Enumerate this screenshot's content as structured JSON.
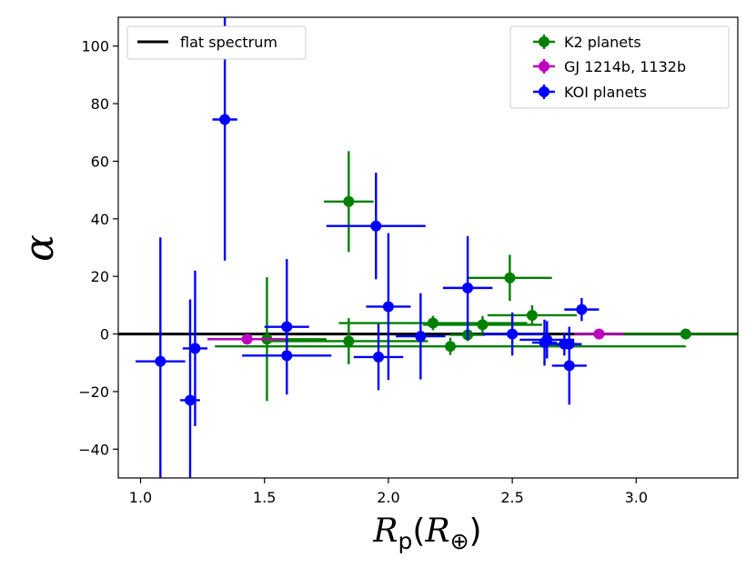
{
  "chart_data": {
    "type": "scatter",
    "title": "",
    "xlabel": "R_p(R_⊕)",
    "xlabel_parts": {
      "main": "R",
      "sub": "p",
      "open": "(",
      "inner": "R",
      "inner_sub": "⊕",
      "close": ")"
    },
    "ylabel": "α",
    "xlim": [
      0.91,
      3.41
    ],
    "ylim": [
      -50,
      110
    ],
    "xticks": [
      1.0,
      1.5,
      2.0,
      2.5,
      3.0
    ],
    "xtick_labels": [
      "1.0",
      "1.5",
      "2.0",
      "2.5",
      "3.0"
    ],
    "yticks": [
      -40,
      -20,
      0,
      20,
      40,
      60,
      80,
      100
    ],
    "ytick_labels": [
      "−40",
      "−20",
      "0",
      "20",
      "40",
      "60",
      "80",
      "100"
    ],
    "grid": false,
    "reference_line": {
      "name": "flat spectrum",
      "y": 0,
      "color": "#000000"
    },
    "legend_left": {
      "location": "upper-left",
      "entries": [
        "flat spectrum"
      ]
    },
    "legend_right": {
      "location": "upper-right",
      "entries": [
        "K2 planets",
        "GJ 1214b, 1132b",
        "KOI planets"
      ]
    },
    "series": [
      {
        "name": "K2 planets",
        "color": "#008000",
        "points": [
          {
            "x": 1.51,
            "y": -1.8,
            "xerr": 0.24,
            "yerr": 21.5
          },
          {
            "x": 1.84,
            "y": -2.5,
            "xerr": 0.32,
            "yerr": 8.0
          },
          {
            "x": 1.84,
            "y": 46.0,
            "xerr": 0.1,
            "yerr": 17.5
          },
          {
            "x": 2.18,
            "y": 3.8,
            "xerr": 0.38,
            "yerr": 2.5
          },
          {
            "x": 2.25,
            "y": -4.3,
            "xerr": 0.95,
            "yerr": 3.0
          },
          {
            "x": 2.32,
            "y": -0.3,
            "xerr": 0.07,
            "yerr": 2.2
          },
          {
            "x": 2.38,
            "y": 3.2,
            "xerr": 0.24,
            "yerr": 3.0
          },
          {
            "x": 2.49,
            "y": 19.5,
            "xerr": 0.17,
            "yerr": 8.0
          },
          {
            "x": 2.58,
            "y": 6.5,
            "xerr": 0.18,
            "yerr": 3.5
          },
          {
            "x": 3.2,
            "y": 0.0,
            "xerr": 0.42,
            "yerr": 1.8
          }
        ]
      },
      {
        "name": "GJ 1214b, 1132b",
        "color": "#bf00bf",
        "points": [
          {
            "x": 1.43,
            "y": -1.8,
            "xerr": 0.16,
            "yerr": 0.8
          },
          {
            "x": 2.85,
            "y": 0.0,
            "xerr": 0.1,
            "yerr": 1.2
          }
        ]
      },
      {
        "name": "KOI planets",
        "color": "#0000ff",
        "points": [
          {
            "x": 1.08,
            "y": -9.5,
            "xerr": 0.1,
            "yerr": 43.0
          },
          {
            "x": 1.2,
            "y": -23.0,
            "xerr": 0.04,
            "yerr": 35.0
          },
          {
            "x": 1.22,
            "y": -5.0,
            "xerr": 0.05,
            "yerr": 27.0
          },
          {
            "x": 1.34,
            "y": 74.5,
            "xerr": 0.05,
            "yerr": 49.0
          },
          {
            "x": 1.59,
            "y": 2.5,
            "xerr": 0.09,
            "yerr": 23.5
          },
          {
            "x": 1.59,
            "y": -7.5,
            "xerr": 0.18,
            "yerr": 13.5
          },
          {
            "x": 1.95,
            "y": 37.5,
            "xerr": 0.2,
            "yerr": 18.5
          },
          {
            "x": 1.96,
            "y": -8.0,
            "xerr": 0.1,
            "yerr": 11.5
          },
          {
            "x": 2.0,
            "y": 9.5,
            "xerr": 0.09,
            "yerr": 25.5
          },
          {
            "x": 2.13,
            "y": -0.8,
            "xerr": 0.1,
            "yerr": 15.0
          },
          {
            "x": 2.32,
            "y": 16.0,
            "xerr": 0.1,
            "yerr": 18.0
          },
          {
            "x": 2.5,
            "y": 0.0,
            "xerr": 0.12,
            "yerr": 7.5
          },
          {
            "x": 2.63,
            "y": -3.0,
            "xerr": 0.05,
            "yerr": 8.0
          },
          {
            "x": 2.64,
            "y": -2.0,
            "xerr": 0.11,
            "yerr": 6.5
          },
          {
            "x": 2.71,
            "y": -3.5,
            "xerr": 0.07,
            "yerr": 4.0
          },
          {
            "x": 2.73,
            "y": -11.0,
            "xerr": 0.07,
            "yerr": 13.5
          },
          {
            "x": 2.73,
            "y": -3.5,
            "xerr": 0.05,
            "yerr": 5.5
          },
          {
            "x": 2.78,
            "y": 8.5,
            "xerr": 0.07,
            "yerr": 4.0
          }
        ]
      }
    ]
  }
}
